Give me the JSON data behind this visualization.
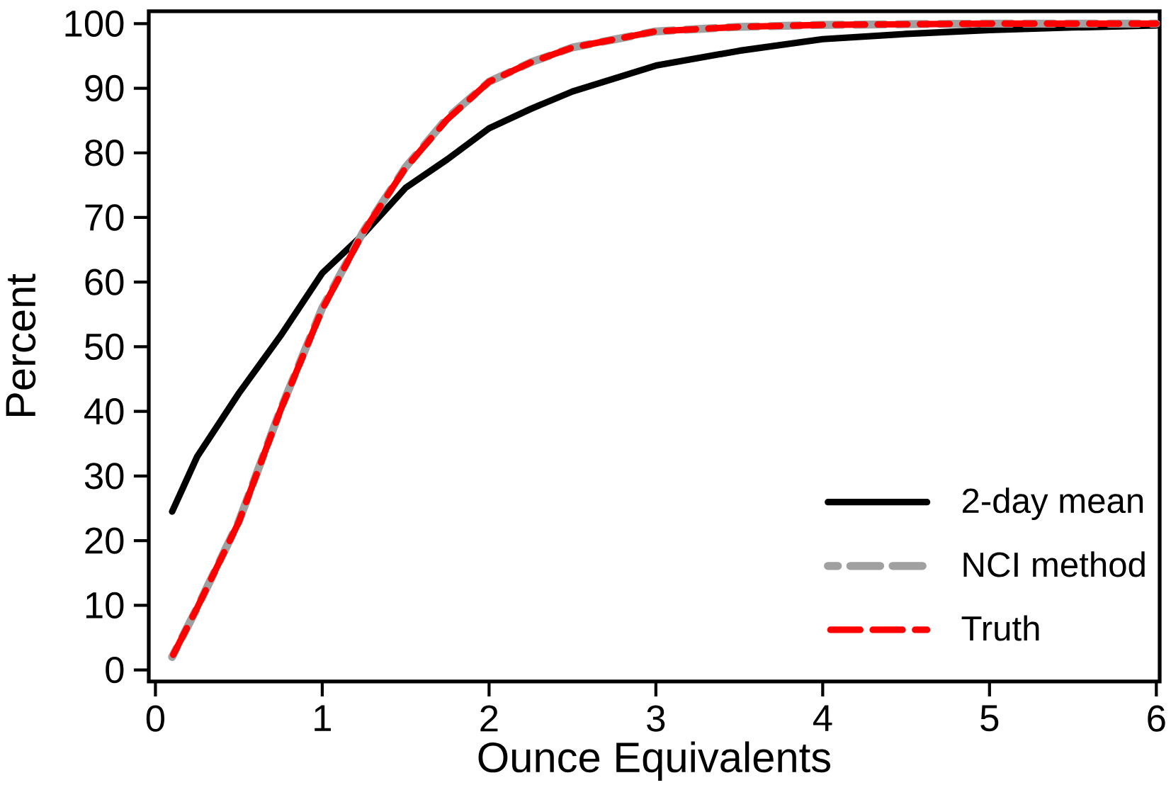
{
  "chart_data": {
    "type": "line",
    "xlabel": "Ounce Equivalents",
    "ylabel": "Percent",
    "xlim": [
      -0.04,
      6.02
    ],
    "ylim": [
      -1.8,
      101.9
    ],
    "xticks": [
      0,
      1,
      2,
      3,
      4,
      5,
      6
    ],
    "yticks": [
      0,
      10,
      20,
      30,
      40,
      50,
      60,
      70,
      80,
      90,
      100
    ],
    "grid": false,
    "legend": "bottom right",
    "marker": "none",
    "x": [
      0.1,
      0.25,
      0.5,
      0.75,
      1,
      1.25,
      1.5,
      1.75,
      2,
      2.25,
      2.5,
      3,
      3.5,
      4,
      4.5,
      5,
      5.5,
      6
    ],
    "series": [
      {
        "name": "2-day mean",
        "color": "#000000",
        "line_style": "solid",
        "values": [
          24.5,
          33,
          42.8,
          51.7,
          61.4,
          67.5,
          74.6,
          79,
          83.8,
          86.8,
          89.5,
          93.5,
          95.8,
          97.6,
          98.4,
          99,
          99.4,
          99.7
        ]
      },
      {
        "name": "NCI method",
        "color": "#a0a0a0",
        "line_style": "dashed",
        "values": [
          2,
          9.6,
          23,
          40.3,
          56,
          68,
          77.8,
          85.4,
          91,
          94,
          96.3,
          98.8,
          99.5,
          99.8,
          99.9,
          100,
          100,
          100
        ]
      },
      {
        "name": "Truth",
        "color": "#ff0000",
        "line_style": "dashed",
        "values": [
          2,
          9.6,
          22.9,
          40.2,
          55.8,
          67.9,
          77.7,
          85.2,
          91,
          94,
          96.3,
          98.8,
          99.5,
          99.8,
          99.9,
          100,
          100,
          100
        ]
      }
    ]
  }
}
